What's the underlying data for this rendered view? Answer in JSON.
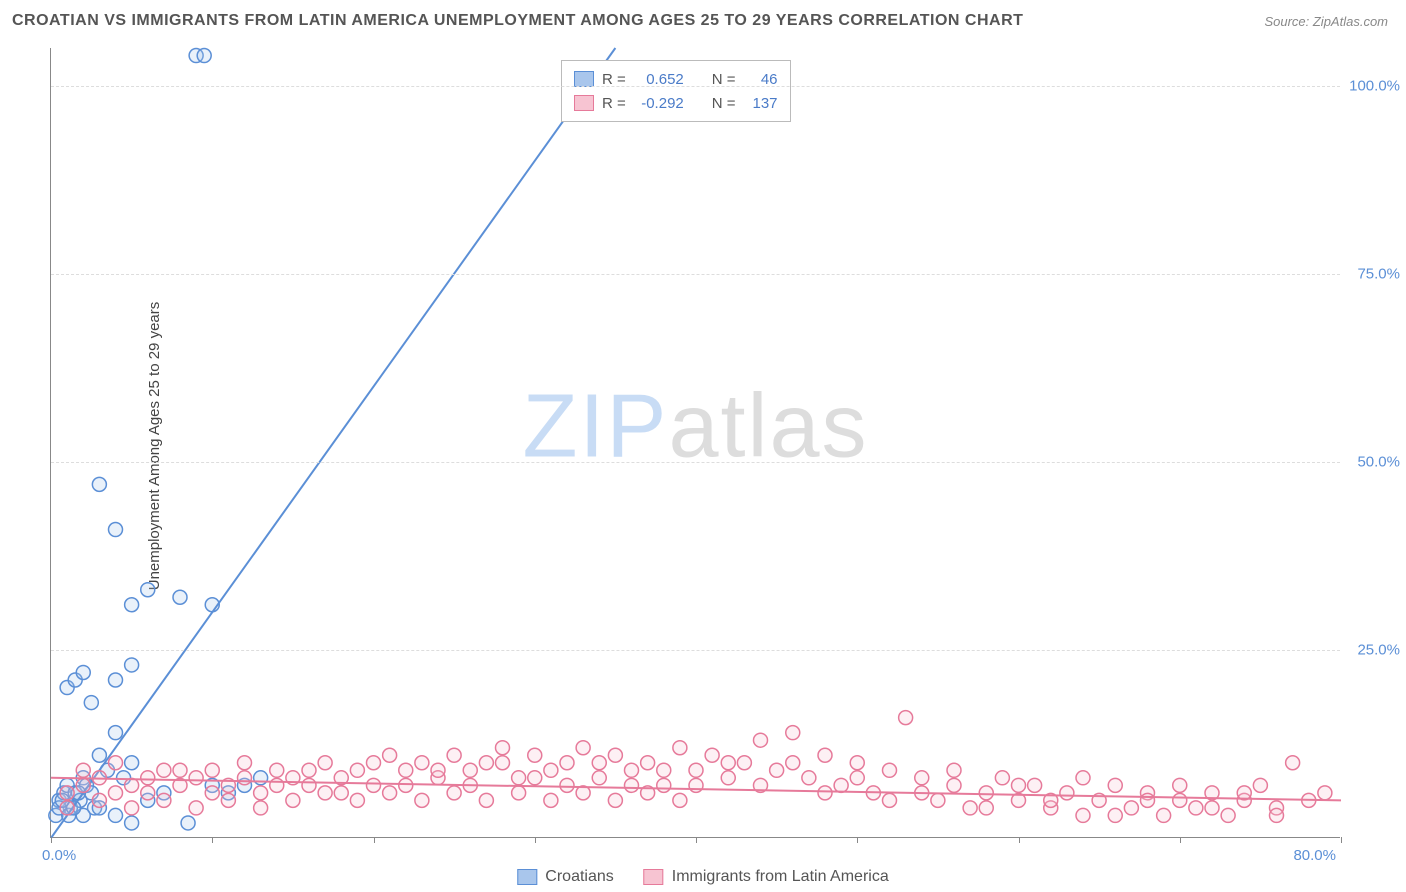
{
  "title": "CROATIAN VS IMMIGRANTS FROM LATIN AMERICA UNEMPLOYMENT AMONG AGES 25 TO 29 YEARS CORRELATION CHART",
  "source": "Source: ZipAtlas.com",
  "y_axis_label": "Unemployment Among Ages 25 to 29 years",
  "watermark_a": "ZIP",
  "watermark_b": "atlas",
  "chart": {
    "type": "scatter",
    "background_color": "#ffffff",
    "grid_color": "#dddddd",
    "axis_color": "#888888",
    "xlim": [
      0,
      80
    ],
    "ylim": [
      0,
      105
    ],
    "x_tick_positions": [
      0,
      10,
      20,
      30,
      40,
      50,
      60,
      70,
      80
    ],
    "x_tick_labels_shown": {
      "0": "0.0%",
      "80": "80.0%"
    },
    "y_tick_positions": [
      25,
      50,
      75,
      100
    ],
    "y_tick_labels": {
      "25": "25.0%",
      "50": "50.0%",
      "75": "75.0%",
      "100": "100.0%"
    },
    "marker_radius": 7,
    "marker_stroke_width": 1.5,
    "marker_fill_opacity": 0.25,
    "trend_line_width": 2
  },
  "legend_stats": {
    "r_label": "R =",
    "n_label": "N ="
  },
  "series": [
    {
      "id": "croatians",
      "label": "Croatians",
      "color_stroke": "#5b8fd6",
      "color_fill": "#a9c6ec",
      "swatch_fill": "#a9c6ec",
      "swatch_border": "#5b8fd6",
      "r": "0.652",
      "n": "46",
      "trend": {
        "x1": 0,
        "y1": 0,
        "x2": 35,
        "y2": 105
      },
      "points": [
        [
          0.5,
          5
        ],
        [
          0.8,
          6
        ],
        [
          1,
          7
        ],
        [
          1.2,
          4
        ],
        [
          1.5,
          6
        ],
        [
          1.8,
          5
        ],
        [
          2,
          8
        ],
        [
          2.2,
          7
        ],
        [
          2.5,
          6
        ],
        [
          2.7,
          4
        ],
        [
          1,
          20
        ],
        [
          1.5,
          21
        ],
        [
          2,
          22
        ],
        [
          2.5,
          18
        ],
        [
          4,
          21
        ],
        [
          5,
          23
        ],
        [
          3,
          11
        ],
        [
          3.5,
          9
        ],
        [
          4,
          14
        ],
        [
          4.5,
          8
        ],
        [
          5,
          10
        ],
        [
          3,
          47
        ],
        [
          4,
          41
        ],
        [
          5,
          31
        ],
        [
          6,
          33
        ],
        [
          8,
          32
        ],
        [
          10,
          31
        ],
        [
          9,
          104
        ],
        [
          9.5,
          104
        ],
        [
          2,
          3
        ],
        [
          3,
          4
        ],
        [
          4,
          3
        ],
        [
          5,
          2
        ],
        [
          6,
          5
        ],
        [
          7,
          6
        ],
        [
          8.5,
          2
        ],
        [
          10,
          7
        ],
        [
          11,
          6
        ],
        [
          12,
          7
        ],
        [
          13,
          8
        ],
        [
          0.3,
          3
        ],
        [
          0.5,
          4
        ],
        [
          0.7,
          5
        ],
        [
          1.1,
          3
        ],
        [
          1.4,
          4
        ],
        [
          1.7,
          6
        ]
      ]
    },
    {
      "id": "latin",
      "label": "Immigrants from Latin America",
      "color_stroke": "#e67a9a",
      "color_fill": "#f7c4d2",
      "swatch_fill": "#f7c4d2",
      "swatch_border": "#e67a9a",
      "r": "-0.292",
      "n": "137",
      "trend": {
        "x1": 0,
        "y1": 8,
        "x2": 80,
        "y2": 5
      },
      "points": [
        [
          1,
          6
        ],
        [
          2,
          7
        ],
        [
          3,
          8
        ],
        [
          4,
          6
        ],
        [
          5,
          7
        ],
        [
          6,
          8
        ],
        [
          7,
          9
        ],
        [
          8,
          7
        ],
        [
          9,
          8
        ],
        [
          10,
          9
        ],
        [
          11,
          7
        ],
        [
          12,
          8
        ],
        [
          13,
          6
        ],
        [
          14,
          9
        ],
        [
          15,
          8
        ],
        [
          16,
          7
        ],
        [
          17,
          10
        ],
        [
          18,
          8
        ],
        [
          19,
          9
        ],
        [
          20,
          7
        ],
        [
          21,
          11
        ],
        [
          22,
          9
        ],
        [
          23,
          10
        ],
        [
          24,
          8
        ],
        [
          25,
          11
        ],
        [
          26,
          9
        ],
        [
          27,
          10
        ],
        [
          28,
          12
        ],
        [
          29,
          8
        ],
        [
          30,
          11
        ],
        [
          31,
          9
        ],
        [
          32,
          10
        ],
        [
          33,
          12
        ],
        [
          34,
          8
        ],
        [
          35,
          11
        ],
        [
          36,
          9
        ],
        [
          37,
          10
        ],
        [
          38,
          7
        ],
        [
          39,
          12
        ],
        [
          40,
          9
        ],
        [
          41,
          11
        ],
        [
          42,
          8
        ],
        [
          43,
          10
        ],
        [
          44,
          13
        ],
        [
          45,
          9
        ],
        [
          46,
          14
        ],
        [
          47,
          8
        ],
        [
          48,
          11
        ],
        [
          49,
          7
        ],
        [
          50,
          10
        ],
        [
          51,
          6
        ],
        [
          52,
          9
        ],
        [
          53,
          16
        ],
        [
          54,
          8
        ],
        [
          55,
          5
        ],
        [
          56,
          7
        ],
        [
          57,
          4
        ],
        [
          58,
          6
        ],
        [
          59,
          8
        ],
        [
          60,
          5
        ],
        [
          61,
          7
        ],
        [
          62,
          4
        ],
        [
          63,
          6
        ],
        [
          64,
          3
        ],
        [
          65,
          5
        ],
        [
          66,
          7
        ],
        [
          67,
          4
        ],
        [
          68,
          6
        ],
        [
          69,
          3
        ],
        [
          70,
          5
        ],
        [
          71,
          4
        ],
        [
          72,
          6
        ],
        [
          73,
          3
        ],
        [
          74,
          5
        ],
        [
          75,
          7
        ],
        [
          76,
          4
        ],
        [
          77,
          10
        ],
        [
          78,
          5
        ],
        [
          79,
          6
        ],
        [
          2,
          9
        ],
        [
          4,
          10
        ],
        [
          6,
          6
        ],
        [
          8,
          9
        ],
        [
          10,
          6
        ],
        [
          12,
          10
        ],
        [
          14,
          7
        ],
        [
          16,
          9
        ],
        [
          18,
          6
        ],
        [
          20,
          10
        ],
        [
          22,
          7
        ],
        [
          24,
          9
        ],
        [
          26,
          7
        ],
        [
          28,
          10
        ],
        [
          30,
          8
        ],
        [
          32,
          7
        ],
        [
          34,
          10
        ],
        [
          36,
          7
        ],
        [
          38,
          9
        ],
        [
          40,
          7
        ],
        [
          42,
          10
        ],
        [
          44,
          7
        ],
        [
          46,
          10
        ],
        [
          48,
          6
        ],
        [
          50,
          8
        ],
        [
          52,
          5
        ],
        [
          54,
          6
        ],
        [
          56,
          9
        ],
        [
          58,
          4
        ],
        [
          60,
          7
        ],
        [
          62,
          5
        ],
        [
          64,
          8
        ],
        [
          66,
          3
        ],
        [
          68,
          5
        ],
        [
          70,
          7
        ],
        [
          72,
          4
        ],
        [
          74,
          6
        ],
        [
          76,
          3
        ],
        [
          1,
          4
        ],
        [
          3,
          5
        ],
        [
          5,
          4
        ],
        [
          7,
          5
        ],
        [
          9,
          4
        ],
        [
          11,
          5
        ],
        [
          13,
          4
        ],
        [
          15,
          5
        ],
        [
          17,
          6
        ],
        [
          19,
          5
        ],
        [
          21,
          6
        ],
        [
          23,
          5
        ],
        [
          25,
          6
        ],
        [
          27,
          5
        ],
        [
          29,
          6
        ],
        [
          31,
          5
        ],
        [
          33,
          6
        ],
        [
          35,
          5
        ],
        [
          37,
          6
        ],
        [
          39,
          5
        ]
      ]
    }
  ]
}
